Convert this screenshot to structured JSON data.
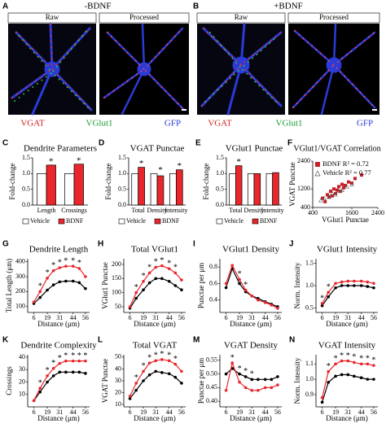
{
  "figure": {
    "panels": [
      {
        "letter": "A",
        "condition": "-BDNF",
        "labels": [
          "Raw",
          "Processed"
        ],
        "channels": [
          "VGAT",
          "VGlut1",
          "GFP"
        ]
      },
      {
        "letter": "B",
        "condition": "+BDNF",
        "labels": [
          "Raw",
          "Processed"
        ],
        "channels": [
          "VGAT",
          "VGlut1",
          "GFP"
        ]
      }
    ]
  },
  "chart_data": [
    {
      "type": "bar",
      "panel": "C",
      "title": "Dendrite Parameters",
      "y_label": "Fold-change",
      "categories": [
        "Length",
        "Crossings"
      ],
      "series": [
        {
          "name": "Vehicle",
          "color": "#ffffff",
          "values": [
            1,
            1
          ]
        },
        {
          "name": "BDNF",
          "color": "#e8262b",
          "values": [
            1.27,
            1.3
          ]
        }
      ],
      "significance": [
        "*",
        "*"
      ],
      "ylim": [
        0,
        1.5
      ],
      "yticks": [
        {
          "value": 0,
          "label": "0.0"
        },
        0.5,
        {
          "value": 1,
          "label": "1.0"
        },
        1.5
      ]
    },
    {
      "type": "bar",
      "panel": "D",
      "title": "VGAT Punctae",
      "y_label": "Fold-change",
      "categories": [
        "Total",
        "Density",
        "Intensity"
      ],
      "series": [
        {
          "name": "Vehicle",
          "color": "#ffffff",
          "values": [
            1,
            1,
            1
          ]
        },
        {
          "name": "BDNF",
          "color": "#e8262b",
          "values": [
            1.2,
            0.93,
            1.12
          ]
        }
      ],
      "significance": [
        "*",
        "*",
        "*"
      ],
      "ylim": [
        0,
        1.5
      ],
      "yticks": [
        {
          "value": 0,
          "label": "0.0"
        },
        0.5,
        {
          "value": 1,
          "label": "1.0"
        },
        1.5
      ]
    },
    {
      "type": "bar",
      "panel": "E",
      "title": "VGlut1 Punctae",
      "y_label": "Fold-change",
      "categories": [
        "Total",
        "Density",
        "Intensity"
      ],
      "series": [
        {
          "name": "Vehicle",
          "color": "#ffffff",
          "values": [
            1,
            1,
            1
          ]
        },
        {
          "name": "BDNF",
          "color": "#e8262b",
          "values": [
            1.25,
            1.0,
            1.03
          ]
        }
      ],
      "significance": [
        "*",
        null,
        null
      ],
      "ylim": [
        0,
        1.5
      ],
      "yticks": [
        {
          "value": 0,
          "label": "0.0"
        },
        0.5,
        {
          "value": 1,
          "label": "1.0"
        },
        1.5
      ]
    },
    {
      "type": "scatter",
      "panel": "F",
      "title": "VGlut1/VGAT Correlation",
      "x_label": "VGlut1 Punctae",
      "y_label": "VGAT Punctae",
      "series": [
        {
          "name": "BDNF R² = 0.72",
          "color": "#c8202a",
          "x": [
            700,
            780,
            850,
            900,
            950,
            1000,
            1050,
            1100,
            1150,
            1200,
            1250,
            1300,
            1350,
            1400,
            1500,
            1600,
            1700,
            1900
          ],
          "y": [
            800,
            650,
            950,
            850,
            1100,
            900,
            1200,
            1000,
            1150,
            1300,
            1100,
            1400,
            1250,
            1350,
            1500,
            1450,
            1650,
            1800
          ]
        },
        {
          "name": "Vehicle R² = 0.77",
          "color": "#555555",
          "x": [
            650,
            750,
            900,
            1000,
            1100,
            1200,
            1300,
            1450,
            1600
          ],
          "y": [
            700,
            800,
            850,
            1000,
            950,
            1100,
            1150,
            1300,
            1400
          ]
        }
      ],
      "xlim": [
        400,
        2400
      ],
      "xticks": [
        400,
        1600,
        2400
      ],
      "ylim": [
        400,
        2400
      ],
      "yticks": [
        400,
        1200,
        2400
      ]
    },
    {
      "type": "line",
      "panel": "G",
      "title": "Dendrite Length",
      "y_label": "Total Length (μm)",
      "x_label": "Distance (μm)",
      "x": [
        6,
        12,
        19,
        25,
        31,
        37,
        44,
        50,
        56
      ],
      "series": [
        {
          "name": "Vehicle",
          "color": "#000000",
          "values": [
            120,
            160,
            210,
            245,
            265,
            270,
            270,
            260,
            220
          ]
        },
        {
          "name": "BDNF",
          "color": "#e8262b",
          "values": [
            130,
            200,
            290,
            340,
            360,
            370,
            370,
            355,
            300
          ]
        }
      ],
      "significance": [
        null,
        "*",
        "*",
        "*",
        "*",
        "*",
        "*",
        "*",
        null
      ],
      "xlim": [
        0,
        60
      ],
      "xticks": [
        6,
        19,
        31,
        44,
        56
      ],
      "ylim": [
        60,
        420
      ],
      "yticks": [
        100,
        200,
        300,
        400
      ]
    },
    {
      "type": "line",
      "panel": "H",
      "title": "Total VGlut1",
      "y_label": "VGlut1 Punctae",
      "x_label": "Distance (μm)",
      "x": [
        6,
        12,
        19,
        25,
        31,
        37,
        44,
        50,
        56
      ],
      "series": [
        {
          "name": "Vehicle",
          "color": "#000000",
          "values": [
            45,
            80,
            110,
            135,
            150,
            150,
            140,
            125,
            110
          ]
        },
        {
          "name": "BDNF",
          "color": "#e8262b",
          "values": [
            50,
            100,
            140,
            170,
            190,
            195,
            185,
            170,
            145
          ]
        }
      ],
      "significance": [
        null,
        "*",
        "*",
        "*",
        "*",
        "*",
        "*",
        "*",
        null
      ],
      "xlim": [
        0,
        60
      ],
      "xticks": [
        6,
        19,
        31,
        44,
        56
      ],
      "ylim": [
        30,
        220
      ],
      "yticks": [
        50,
        100,
        150,
        200
      ]
    },
    {
      "type": "line",
      "panel": "I",
      "title": "VGlut1 Density",
      "y_label": "Punctae per μm",
      "x_label": "Distance (μm)",
      "x": [
        6,
        12,
        19,
        25,
        31,
        37,
        44,
        50,
        56
      ],
      "series": [
        {
          "name": "Vehicle",
          "color": "#000000",
          "values": [
            0.55,
            0.78,
            0.6,
            0.5,
            0.45,
            0.42,
            0.38,
            0.35,
            0.32
          ]
        },
        {
          "name": "BDNF",
          "color": "#e8262b",
          "values": [
            0.6,
            0.82,
            0.65,
            0.52,
            0.45,
            0.4,
            0.37,
            0.34,
            0.3
          ]
        }
      ],
      "significance": [
        null,
        null,
        "*",
        "*",
        null,
        null,
        null,
        null,
        null
      ],
      "xlim": [
        0,
        60
      ],
      "xticks": [
        6,
        19,
        31,
        44,
        56
      ],
      "ylim": [
        0.25,
        0.9
      ],
      "yticks": [
        0.4,
        0.6,
        0.8
      ]
    },
    {
      "type": "line",
      "panel": "J",
      "title": "VGlut1 Intensity",
      "y_label": "Norm. Intensity",
      "x_label": "Distance (μm)",
      "x": [
        6,
        12,
        19,
        25,
        31,
        37,
        44,
        50,
        56
      ],
      "series": [
        {
          "name": "Vehicle",
          "color": "#000000",
          "values": [
            0.55,
            0.75,
            0.95,
            1.0,
            1.0,
            1.0,
            1.0,
            0.98,
            0.95
          ]
        },
        {
          "name": "BDNF",
          "color": "#e8262b",
          "values": [
            0.6,
            0.85,
            1.05,
            1.08,
            1.1,
            1.1,
            1.1,
            1.08,
            1.05
          ]
        }
      ],
      "significance": [
        "*",
        "*",
        null,
        null,
        null,
        null,
        null,
        null,
        null
      ],
      "xlim": [
        0,
        60
      ],
      "xticks": [
        6,
        19,
        31,
        44,
        56
      ],
      "ylim": [
        0.4,
        1.6
      ],
      "yticks": [
        0.5,
        {
          "value": 1,
          "label": "1.0"
        },
        1.5
      ]
    },
    {
      "type": "line",
      "panel": "K",
      "title": "Dendrite Complexity",
      "y_label": "Crossings",
      "x_label": "Distance (μm)",
      "x": [
        6,
        12,
        19,
        25,
        31,
        37,
        44,
        50,
        56
      ],
      "series": [
        {
          "name": "Vehicle",
          "color": "#000000",
          "values": [
            5,
            12,
            20,
            25,
            28,
            28,
            28,
            28,
            27
          ]
        },
        {
          "name": "BDNF",
          "color": "#e8262b",
          "values": [
            5,
            15,
            25,
            31,
            35,
            37,
            37,
            37,
            37
          ]
        }
      ],
      "significance": [
        null,
        "*",
        "*",
        "*",
        "*",
        "*",
        "*",
        "*",
        "*"
      ],
      "xlim": [
        0,
        60
      ],
      "xticks": [
        6,
        19,
        31,
        44,
        56
      ],
      "ylim": [
        0,
        42
      ],
      "yticks": [
        10,
        20,
        30,
        40
      ]
    },
    {
      "type": "line",
      "panel": "L",
      "title": "Total VGAT",
      "y_label": "VGAT Punctae",
      "x_label": "Distance (μm)",
      "x": [
        6,
        12,
        19,
        25,
        31,
        37,
        44,
        50,
        56
      ],
      "series": [
        {
          "name": "Vehicle",
          "color": "#000000",
          "values": [
            15,
            22,
            30,
            35,
            38,
            37,
            36,
            33,
            28
          ]
        },
        {
          "name": "BDNF",
          "color": "#e8262b",
          "values": [
            17,
            28,
            38,
            45,
            47,
            48,
            47,
            44,
            38
          ]
        }
      ],
      "significance": [
        null,
        "*",
        "*",
        "*",
        "*",
        "*",
        "*",
        "*",
        null
      ],
      "xlim": [
        0,
        60
      ],
      "xticks": [
        6,
        19,
        31,
        44,
        56
      ],
      "ylim": [
        8,
        52
      ],
      "yticks": [
        10,
        20,
        30,
        40,
        50
      ]
    },
    {
      "type": "line",
      "panel": "M",
      "title": "VGAT Density",
      "y_label": "Punctae per μm",
      "x_label": "Distance (μm)",
      "x": [
        6,
        12,
        19,
        25,
        31,
        37,
        44,
        50,
        56
      ],
      "series": [
        {
          "name": "Vehicle",
          "color": "#000000",
          "values": [
            0.5,
            0.52,
            0.5,
            0.49,
            0.48,
            0.48,
            0.48,
            0.48,
            0.49
          ]
        },
        {
          "name": "BDNF",
          "color": "#e8262b",
          "values": [
            0.44,
            0.54,
            0.47,
            0.45,
            0.44,
            0.44,
            0.45,
            0.45,
            0.46
          ]
        }
      ],
      "significance": [
        null,
        "*",
        "*",
        "*",
        "*",
        null,
        null,
        null,
        null
      ],
      "xlim": [
        0,
        60
      ],
      "xticks": [
        6,
        19,
        31,
        44,
        56
      ],
      "ylim": [
        0.38,
        0.57
      ],
      "yticks": [
        {
          "value": 0.4,
          "label": "0.40"
        },
        0.45,
        {
          "value": 0.5,
          "label": "0.50"
        },
        0.55
      ]
    },
    {
      "type": "line",
      "panel": "N",
      "title": "VGAT Intensity",
      "y_label": "Norm. Intensity",
      "x_label": "Distance (μm)",
      "x": [
        6,
        12,
        19,
        25,
        31,
        37,
        44,
        50,
        56
      ],
      "series": [
        {
          "name": "Vehicle",
          "color": "#000000",
          "values": [
            0.85,
            0.98,
            1.02,
            1.03,
            1.03,
            1.02,
            1.01,
            1.0,
            1.0
          ]
        },
        {
          "name": "BDNF",
          "color": "#e8262b",
          "values": [
            0.88,
            1.05,
            1.1,
            1.12,
            1.12,
            1.11,
            1.1,
            1.1,
            1.09
          ]
        }
      ],
      "significance": [
        null,
        "*",
        "*",
        "*",
        "*",
        "*",
        "*",
        "*",
        "*"
      ],
      "xlim": [
        0,
        60
      ],
      "xticks": [
        6,
        19,
        31,
        44,
        56
      ],
      "ylim": [
        0.82,
        1.16
      ],
      "yticks": [
        0.9,
        {
          "value": 1,
          "label": "1.0"
        },
        1.1
      ]
    }
  ]
}
